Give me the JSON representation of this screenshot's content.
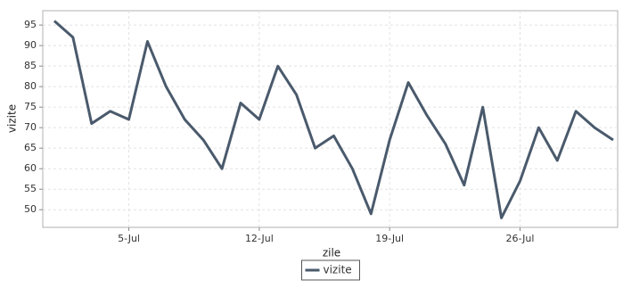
{
  "chart_data": {
    "type": "line",
    "x_label": "zile",
    "y_label": "vizite",
    "x": [
      1,
      2,
      3,
      4,
      5,
      6,
      7,
      8,
      9,
      10,
      11,
      12,
      13,
      14,
      15,
      16,
      17,
      18,
      19,
      20,
      21,
      22,
      23,
      24,
      25,
      26,
      27,
      28,
      29,
      30,
      31
    ],
    "series": [
      {
        "name": "vizite",
        "color": "#4a5a6c",
        "values": [
          96,
          92,
          71,
          74,
          72,
          91,
          80,
          72,
          67,
          60,
          76,
          72,
          85,
          78,
          65,
          68,
          60,
          49,
          67,
          81,
          73,
          66,
          56,
          75,
          48,
          57,
          70,
          62,
          74,
          70,
          67
        ]
      }
    ],
    "xlim": [
      0.38,
      31.24
    ],
    "xticks": [
      {
        "value": 5,
        "label": "5-Jul"
      },
      {
        "value": 12,
        "label": "12-Jul"
      },
      {
        "value": 19,
        "label": "19-Jul"
      },
      {
        "value": 26,
        "label": "26-Jul"
      }
    ],
    "ylim": [
      45.7,
      98.5
    ],
    "yticks": [
      50,
      55,
      60,
      65,
      70,
      75,
      80,
      85,
      90,
      95
    ],
    "grid": true,
    "legend": "bottom"
  }
}
